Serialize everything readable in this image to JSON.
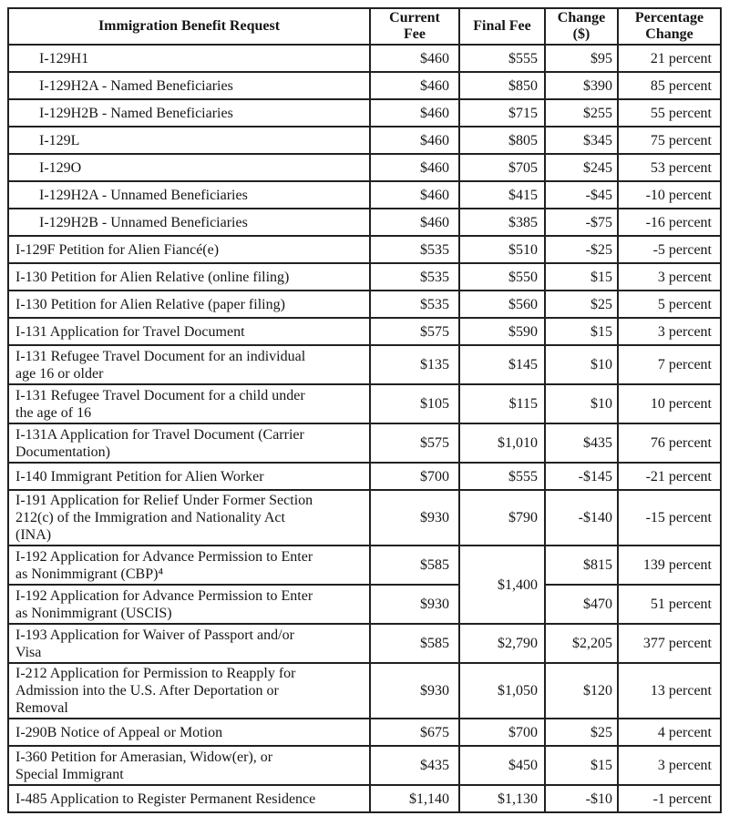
{
  "colors": {
    "background": "#ffffff",
    "border": "#212121",
    "text": "#161616"
  },
  "table": {
    "headers": [
      "Immigration Benefit Request",
      "Current\nFee",
      "Final Fee",
      "Change\n($)",
      "Percentage\nChange"
    ],
    "rows": [
      {
        "benefit": "I-129H1",
        "indent": true,
        "lines": 1,
        "current_fee": "$460",
        "final_fee": "$555",
        "change": "$95",
        "percentage_change": "21 percent"
      },
      {
        "benefit": "I-129H2A - Named Beneficiaries",
        "indent": true,
        "lines": 1,
        "current_fee": "$460",
        "final_fee": "$850",
        "change": "$390",
        "percentage_change": "85 percent"
      },
      {
        "benefit": "I-129H2B - Named Beneficiaries",
        "indent": true,
        "lines": 1,
        "current_fee": "$460",
        "final_fee": "$715",
        "change": "$255",
        "percentage_change": "55 percent"
      },
      {
        "benefit": "I-129L",
        "indent": true,
        "lines": 1,
        "current_fee": "$460",
        "final_fee": "$805",
        "change": "$345",
        "percentage_change": "75 percent"
      },
      {
        "benefit": "I-129O",
        "indent": true,
        "lines": 1,
        "current_fee": "$460",
        "final_fee": "$705",
        "change": "$245",
        "percentage_change": "53 percent"
      },
      {
        "benefit": "I-129H2A - Unnamed Beneficiaries",
        "indent": true,
        "lines": 1,
        "current_fee": "$460",
        "final_fee": "$415",
        "change": "-$45",
        "percentage_change": "-10 percent"
      },
      {
        "benefit": "I-129H2B - Unnamed Beneficiaries",
        "indent": true,
        "lines": 1,
        "current_fee": "$460",
        "final_fee": "$385",
        "change": "-$75",
        "percentage_change": "-16 percent"
      },
      {
        "benefit": "I-129F Petition for Alien Fiancé(e)",
        "lines": 1,
        "current_fee": "$535",
        "final_fee": "$510",
        "change": "-$25",
        "percentage_change": "-5 percent"
      },
      {
        "benefit": "I-130 Petition for Alien Relative (online filing)",
        "lines": 1,
        "current_fee": "$535",
        "final_fee": "$550",
        "change": "$15",
        "percentage_change": "3 percent"
      },
      {
        "benefit": "I-130 Petition for Alien Relative (paper filing)",
        "lines": 1,
        "current_fee": "$535",
        "final_fee": "$560",
        "change": "$25",
        "percentage_change": "5 percent"
      },
      {
        "benefit": "I-131 Application for Travel Document",
        "lines": 1,
        "current_fee": "$575",
        "final_fee": "$590",
        "change": "$15",
        "percentage_change": "3 percent"
      },
      {
        "benefit": "I-131 Refugee Travel Document for an individual\nage 16 or older",
        "lines": 2,
        "current_fee": "$135",
        "final_fee": "$145",
        "change": "$10",
        "percentage_change": "7 percent"
      },
      {
        "benefit": "I-131 Refugee Travel Document for a child under\nthe age of 16",
        "lines": 2,
        "current_fee": "$105",
        "final_fee": "$115",
        "change": "$10",
        "percentage_change": "10 percent"
      },
      {
        "benefit": "I-131A Application for Travel Document (Carrier\nDocumentation)",
        "lines": 2,
        "current_fee": "$575",
        "final_fee": "$1,010",
        "change": "$435",
        "percentage_change": "76 percent"
      },
      {
        "benefit": "I-140 Immigrant Petition for Alien Worker",
        "lines": 1,
        "current_fee": "$700",
        "final_fee": "$555",
        "change": "-$145",
        "percentage_change": "-21 percent"
      },
      {
        "benefit": "I-191 Application for Relief Under Former Section\n212(c) of the Immigration and Nationality Act\n(INA)",
        "lines": 3,
        "current_fee": "$930",
        "final_fee": "$790",
        "change": "-$140",
        "percentage_change": "-15 percent"
      },
      {
        "benefit": "I-192 Application for Advance Permission to Enter\nas Nonimmigrant (CBP)⁴",
        "lines": 2,
        "current_fee": "$585",
        "final_fee": "$1,400",
        "final_fee_rowspan": 2,
        "change": "$815",
        "percentage_change": "139 percent"
      },
      {
        "benefit": "I-192 Application for Advance Permission to Enter\nas Nonimmigrant (USCIS)",
        "lines": 2,
        "current_fee": "$930",
        "final_fee_merged": true,
        "change": "$470",
        "percentage_change": "51 percent"
      },
      {
        "benefit": "I-193 Application for Waiver of Passport and/or\nVisa",
        "lines": 2,
        "current_fee": "$585",
        "final_fee": "$2,790",
        "change": "$2,205",
        "percentage_change": "377 percent"
      },
      {
        "benefit": "I-212 Application for Permission to Reapply for\nAdmission into the U.S. After Deportation or\nRemoval",
        "lines": 3,
        "current_fee": "$930",
        "final_fee": "$1,050",
        "change": "$120",
        "percentage_change": "13 percent"
      },
      {
        "benefit": "I-290B Notice of Appeal or Motion",
        "lines": 1,
        "current_fee": "$675",
        "final_fee": "$700",
        "change": "$25",
        "percentage_change": "4 percent"
      },
      {
        "benefit": "I-360 Petition for Amerasian, Widow(er), or\nSpecial Immigrant",
        "lines": 2,
        "current_fee": "$435",
        "final_fee": "$450",
        "change": "$15",
        "percentage_change": "3 percent"
      },
      {
        "benefit": "I-485 Application to Register Permanent Residence",
        "lines": 1,
        "current_fee": "$1,140",
        "final_fee": "$1,130",
        "change": "-$10",
        "percentage_change": "-1 percent"
      }
    ]
  }
}
